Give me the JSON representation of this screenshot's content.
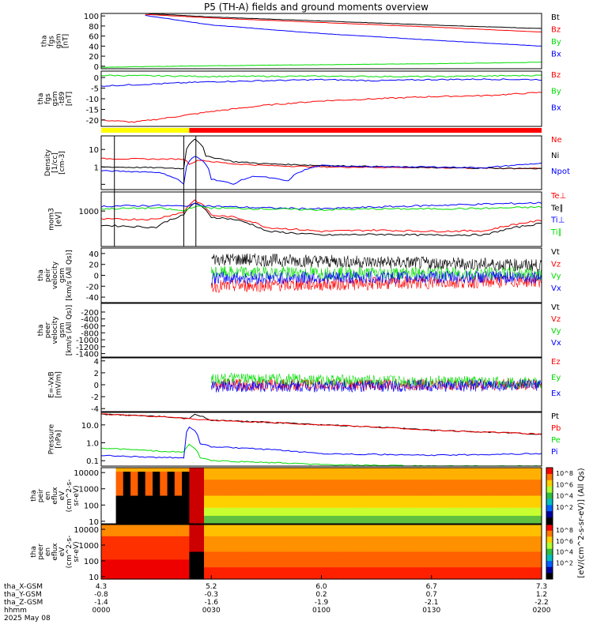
{
  "title": "P5 (TH-A) fields and ground moments overview",
  "colors": {
    "black": "#000000",
    "red": "#ff0000",
    "green": "#00dd00",
    "blue": "#0000ff",
    "yellow": "#ffff00"
  },
  "chart_data": [
    {
      "type": "line",
      "id": "fgs_mag",
      "ylabel": [
        "tha",
        "fgs",
        "gsm",
        "[nT]"
      ],
      "ylim": [
        -5,
        105
      ],
      "yticks": [
        0,
        20,
        40,
        60,
        80,
        100
      ],
      "series": [
        {
          "name": "Bt",
          "color": "black",
          "x": [
            0.4,
            1,
            2,
            3,
            4
          ],
          "y": [
            105,
            98,
            90,
            82,
            75
          ]
        },
        {
          "name": "Bz",
          "color": "red",
          "x": [
            0.4,
            1,
            2,
            3,
            4
          ],
          "y": [
            103,
            96,
            87,
            78,
            68
          ]
        },
        {
          "name": "By",
          "color": "green",
          "x": [
            0,
            1,
            2,
            3,
            4
          ],
          "y": [
            -2,
            1,
            3,
            5,
            8
          ]
        },
        {
          "name": "Bx",
          "color": "blue",
          "x": [
            0.4,
            1,
            2,
            3,
            4
          ],
          "y": [
            101,
            82,
            65,
            52,
            40
          ]
        }
      ]
    },
    {
      "type": "line",
      "id": "fgs_dsl",
      "ylabel": [
        "tha",
        "fgs",
        "gsm",
        "-t89",
        "[nT]"
      ],
      "ylim": [
        -23,
        3
      ],
      "yticks": [
        0,
        -5,
        -10,
        -15,
        -20
      ],
      "series": [
        {
          "name": "Bz",
          "color": "red",
          "x": [
            0,
            0.3,
            0.6,
            1,
            1.5,
            2,
            2.5,
            3,
            3.5,
            4
          ],
          "y": [
            -20,
            -21,
            -19,
            -16,
            -13,
            -11,
            -10,
            -9,
            -8.5,
            -7
          ]
        },
        {
          "name": "By",
          "color": "green",
          "x": [
            0,
            1,
            2,
            3,
            4
          ],
          "y": [
            1,
            0.5,
            0.6,
            0.4,
            1
          ]
        },
        {
          "name": "Bx",
          "color": "blue",
          "x": [
            0,
            0.5,
            1,
            1.5,
            2,
            2.5,
            3,
            3.5,
            4
          ],
          "y": [
            -4,
            -3,
            -2,
            -1.5,
            -1,
            -1.5,
            -1,
            -0.8,
            -1
          ]
        }
      ]
    },
    {
      "type": "line",
      "id": "density",
      "ylabel": [
        "Density",
        "[1/cc]",
        "[cm-3]"
      ],
      "yscale": "log",
      "ylim": [
        0.05,
        60
      ],
      "yticks": [
        0.1,
        1,
        10
      ],
      "yticklabels": [
        "",
        "1",
        "10"
      ],
      "series": [
        {
          "name": "Ne",
          "color": "red",
          "x": [
            0,
            0.5,
            0.75,
            0.8,
            0.9,
            1,
            1.2,
            1.5,
            2,
            3,
            4
          ],
          "y": [
            3,
            2.8,
            2.8,
            1.5,
            2.5,
            2,
            1.5,
            1.2,
            1,
            0.9,
            0.8
          ]
        },
        {
          "name": "Ni",
          "color": "black",
          "x": [
            0,
            0.5,
            0.75,
            0.85,
            0.95,
            1.2,
            1.5,
            2,
            3,
            4
          ],
          "y": [
            1,
            0.9,
            0.8,
            40,
            4,
            2,
            1.5,
            1.2,
            0.9,
            0.8
          ]
        },
        {
          "name": "Npot",
          "color": "blue",
          "x": [
            0,
            0.5,
            0.75,
            0.85,
            1,
            1.2,
            1.4,
            1.7,
            2,
            2.5,
            3,
            3.5,
            4
          ],
          "y": [
            0.6,
            0.5,
            0.1,
            4,
            0.2,
            0.1,
            0.3,
            0.15,
            1.2,
            1,
            1,
            0.9,
            1.6
          ]
        }
      ]
    },
    {
      "type": "line",
      "id": "temperature",
      "ylabel": [
        "mom3",
        "[eV]"
      ],
      "yscale": "log",
      "ylim": [
        50,
        5000
      ],
      "yticks": [
        1000
      ],
      "yticklabels": [
        "1000"
      ],
      "series": [
        {
          "name": "Te⊥",
          "color": "red",
          "x": [
            0,
            0.5,
            0.75,
            0.85,
            1,
            1.2,
            1.5,
            2,
            2.5,
            3,
            3.5,
            4
          ],
          "y": [
            500,
            500,
            900,
            2500,
            700,
            600,
            250,
            180,
            200,
            180,
            190,
            450
          ]
        },
        {
          "name": "Te∥",
          "color": "black",
          "x": [
            0,
            0.5,
            0.75,
            0.85,
            1,
            1.2,
            1.5,
            2,
            2.5,
            3,
            3.5,
            4
          ],
          "y": [
            300,
            250,
            700,
            2000,
            600,
            500,
            180,
            130,
            140,
            130,
            135,
            350
          ]
        },
        {
          "name": "Ti⊥",
          "color": "blue",
          "x": [
            0,
            0.5,
            0.75,
            0.85,
            1,
            1.5,
            2,
            2.5,
            3,
            3.5,
            4
          ],
          "y": [
            1500,
            1600,
            1500,
            1800,
            1500,
            1300,
            1200,
            1400,
            1600,
            1800,
            2000
          ]
        },
        {
          "name": "Ti∥",
          "color": "green",
          "x": [
            0,
            0.5,
            0.75,
            0.85,
            1,
            1.5,
            2,
            2.5,
            3,
            3.5,
            4
          ],
          "y": [
            1200,
            1300,
            1000,
            1500,
            1300,
            1200,
            1100,
            1200,
            1200,
            1250,
            1400
          ]
        }
      ]
    },
    {
      "type": "line",
      "id": "peir_velocity",
      "ylabel": [
        "tha",
        "peir",
        "velocity",
        "gsm",
        "[km/s (All Qs)]"
      ],
      "ylim": [
        -50,
        50
      ],
      "yticks": [
        40,
        20,
        0,
        -20,
        -40
      ],
      "series": [
        {
          "name": "Vt",
          "color": "black",
          "x": [
            1,
            4
          ],
          "y": [
            30,
            18
          ]
        },
        {
          "name": "Vz",
          "color": "red",
          "x": [
            1,
            4
          ],
          "y": [
            -20,
            -10
          ]
        },
        {
          "name": "Vy",
          "color": "green",
          "x": [
            1,
            4
          ],
          "y": [
            5,
            3
          ]
        },
        {
          "name": "Vx",
          "color": "blue",
          "x": [
            1,
            4
          ],
          "y": [
            -5,
            -3
          ]
        }
      ]
    },
    {
      "type": "line",
      "id": "peer_velocity",
      "ylabel": [
        "tha",
        "peer",
        "velocity",
        "gsm",
        "[km/s (All Qs)]"
      ],
      "ylim": [
        -1500,
        50
      ],
      "yticks": [
        -200,
        -400,
        -600,
        -800,
        -1000,
        -1200,
        -1400
      ],
      "series": [
        {
          "name": "Vt",
          "color": "black",
          "x": [],
          "y": []
        },
        {
          "name": "Vz",
          "color": "red",
          "x": [],
          "y": []
        },
        {
          "name": "Vy",
          "color": "green",
          "x": [],
          "y": []
        },
        {
          "name": "Vx",
          "color": "blue",
          "x": [],
          "y": []
        }
      ]
    },
    {
      "type": "line",
      "id": "efield",
      "ylabel": [
        "E=-VxB",
        "[mV/m]"
      ],
      "ylim": [
        -4.5,
        4.5
      ],
      "yticks": [
        4,
        2,
        0,
        -2,
        -4
      ],
      "series": [
        {
          "name": "Ez",
          "color": "red",
          "x": [
            1,
            4
          ],
          "y": [
            0,
            0
          ]
        },
        {
          "name": "Ey",
          "color": "green",
          "x": [
            1,
            4
          ],
          "y": [
            1,
            0.3
          ]
        },
        {
          "name": "Ex",
          "color": "blue",
          "x": [
            1,
            4
          ],
          "y": [
            -0.3,
            -0.1
          ]
        }
      ]
    },
    {
      "type": "line",
      "id": "pressure",
      "ylabel": [
        "Pressure",
        "[nPa]"
      ],
      "yscale": "log",
      "ylim": [
        0.05,
        50
      ],
      "yticks": [
        10,
        1,
        0.1
      ],
      "yticklabels": [
        "10.0",
        "1.0",
        "0.1"
      ],
      "series": [
        {
          "name": "Pt",
          "color": "black",
          "x": [
            0,
            0.5,
            0.8,
            0.85,
            1,
            2,
            3,
            4
          ],
          "y": [
            40,
            30,
            22,
            40,
            18,
            10,
            5,
            3
          ]
        },
        {
          "name": "Pb",
          "color": "red",
          "x": [
            0,
            0.5,
            0.8,
            1,
            2,
            3,
            4
          ],
          "y": [
            40,
            30,
            22,
            18,
            10,
            5,
            3
          ]
        },
        {
          "name": "Pe",
          "color": "green",
          "x": [
            0,
            0.5,
            0.75,
            0.8,
            0.9,
            1,
            2,
            3,
            4
          ],
          "y": [
            0.5,
            0.35,
            0.3,
            0.8,
            0.15,
            0.1,
            0.06,
            0.05,
            0.05
          ]
        },
        {
          "name": "Pi",
          "color": "blue",
          "x": [
            0,
            0.5,
            0.75,
            0.8,
            0.9,
            1,
            2,
            3,
            4
          ],
          "y": [
            0.2,
            0.15,
            0.15,
            8,
            0.9,
            0.6,
            0.25,
            0.2,
            0.25
          ]
        }
      ]
    },
    {
      "type": "heatmap",
      "id": "peir_spec",
      "ylabel": [
        "tha",
        "peir",
        "en",
        "eflux",
        "eV",
        "(cm^2-s-",
        "sr-eV)"
      ],
      "yscale": "log",
      "ylim": [
        7,
        20000
      ],
      "yticks": [
        10,
        100,
        1000,
        10000
      ],
      "yticklabels": [
        "10",
        "100",
        "1000",
        "10000"
      ]
    },
    {
      "type": "heatmap",
      "id": "peer_spec",
      "ylabel": [
        "tha",
        "peer",
        "en",
        "eflux",
        "eV",
        "(cm^2-s-",
        "sr-eV)"
      ],
      "yscale": "log",
      "ylim": [
        7,
        20000
      ],
      "yticks": [
        10,
        100,
        1000,
        10000
      ],
      "yticklabels": [
        "10",
        "100",
        "1000",
        "10000"
      ]
    }
  ],
  "colorbar": {
    "label": "[eV/(cm^2-s-sr-eV)] (All Qs)",
    "ticks_top": [
      "10^8",
      "10^6",
      "10^4",
      "10^2"
    ],
    "ticks_bottom": [
      "10^8",
      "10^6",
      "10^4",
      "10^2"
    ]
  },
  "xaxis": {
    "rows": [
      {
        "label": "tha_X-GSM",
        "values": [
          "4.3",
          "5.2",
          "6.0",
          "6.7",
          "7.3"
        ]
      },
      {
        "label": "tha_Y-GSM",
        "values": [
          "-0.8",
          "-0.3",
          "0.2",
          "0.7",
          "1.2"
        ]
      },
      {
        "label": "tha_Z-GSM",
        "values": [
          "-1.4",
          "-1.6",
          "-1.9",
          "-2.1",
          "-2.2"
        ]
      },
      {
        "label": "hhmm",
        "values": [
          "0000",
          "0030",
          "0100",
          "0130",
          "0200"
        ]
      }
    ],
    "date": "2025 May 08"
  }
}
